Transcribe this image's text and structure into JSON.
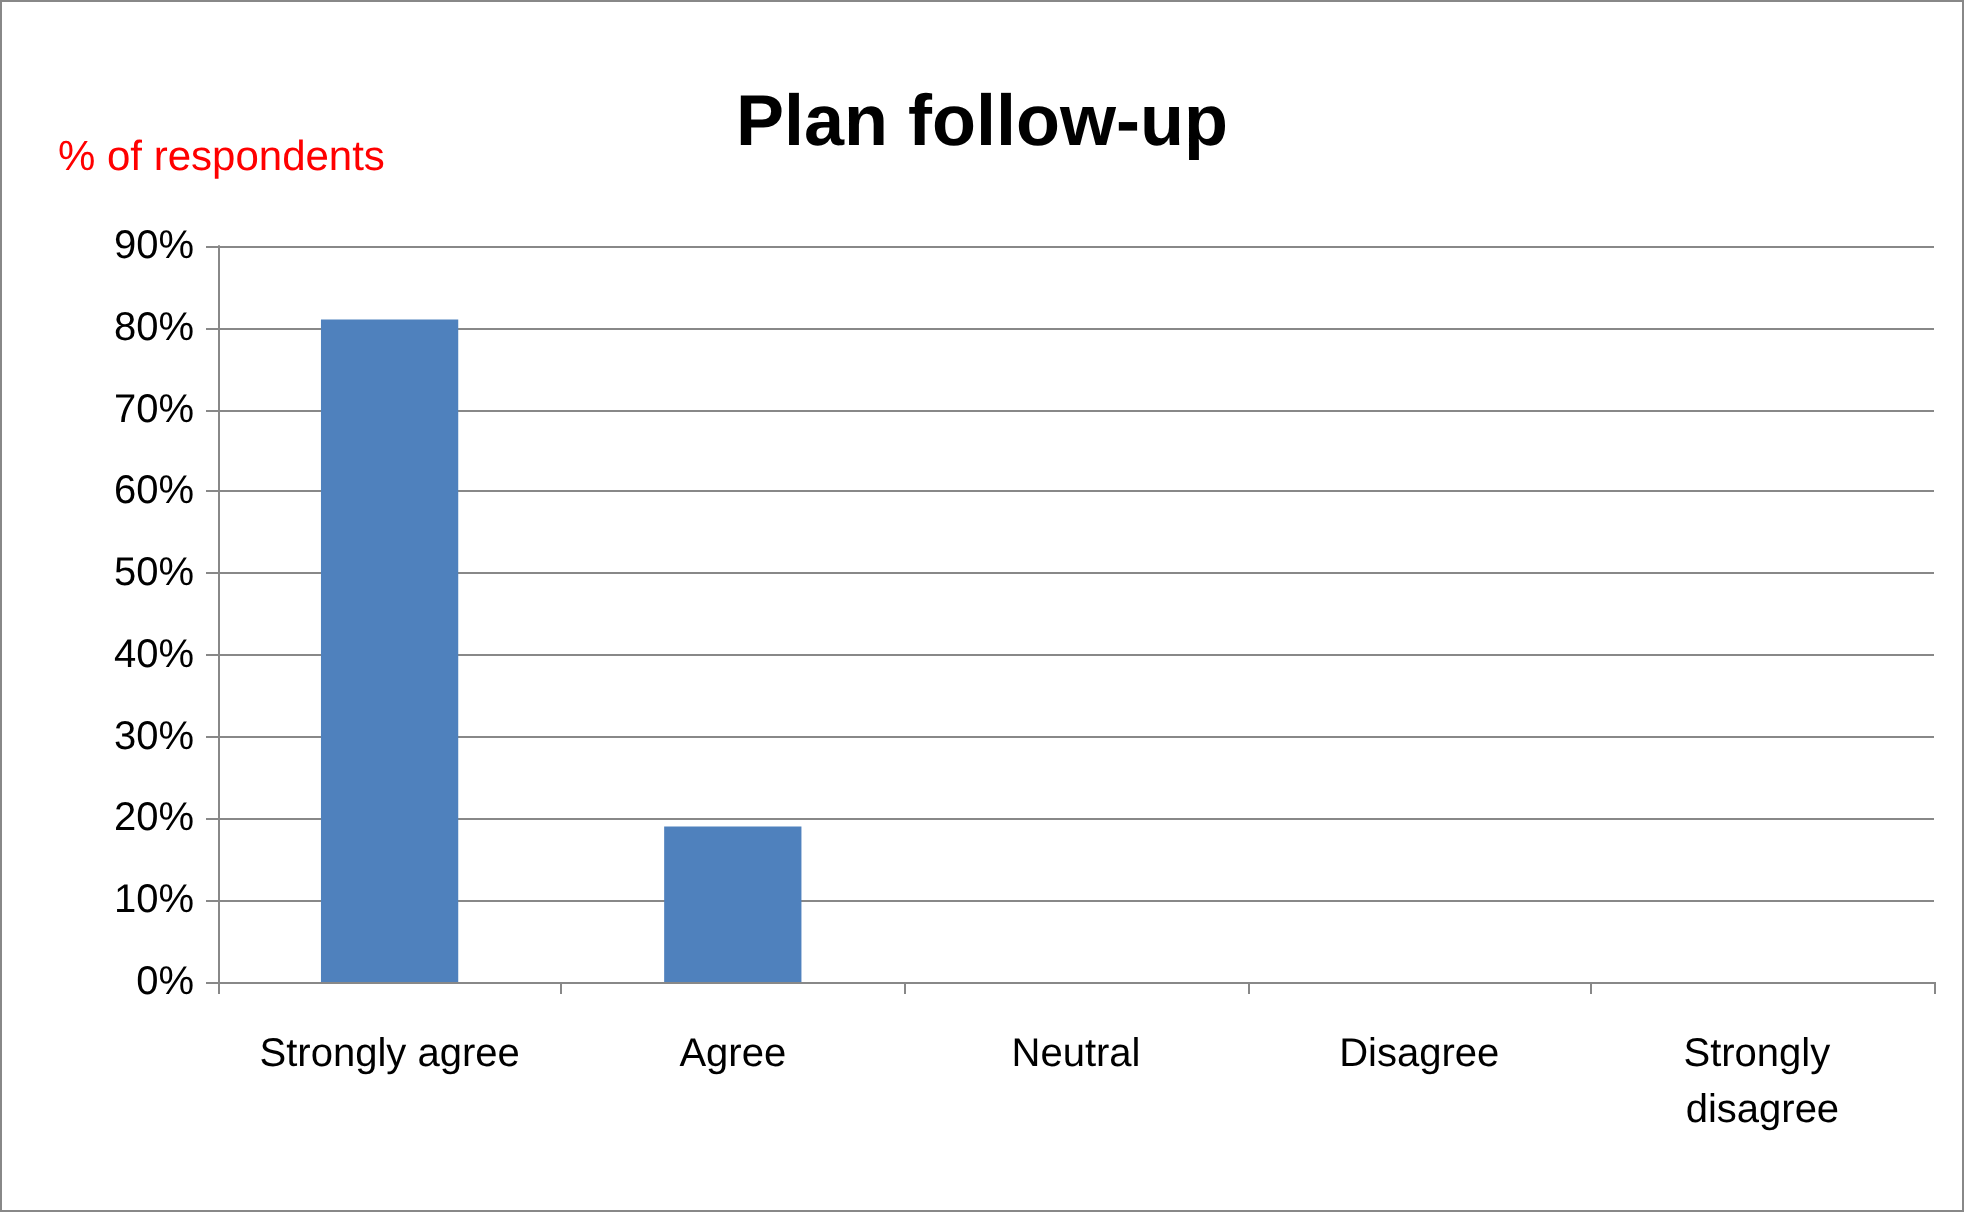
{
  "chart_data": {
    "type": "bar",
    "title": "Plan follow-up",
    "ylabel": "% of respondents",
    "categories": [
      "Strongly agree",
      "Agree",
      "Neutral",
      "Disagree",
      "Strongly disagree"
    ],
    "values": [
      81,
      19,
      0,
      0,
      0
    ],
    "color": "#4f81bd",
    "ylim": [
      0,
      90
    ],
    "yticks": [
      {
        "value": 0,
        "label": "0%"
      },
      {
        "value": 10,
        "label": "10%"
      },
      {
        "value": 20,
        "label": "20%"
      },
      {
        "value": 30,
        "label": "30%"
      },
      {
        "value": 40,
        "label": "40%"
      },
      {
        "value": 50,
        "label": "50%"
      },
      {
        "value": 60,
        "label": "60%"
      },
      {
        "value": 70,
        "label": "70%"
      },
      {
        "value": 80,
        "label": "80%"
      },
      {
        "value": 90,
        "label": "90%"
      }
    ],
    "grid": "y"
  }
}
